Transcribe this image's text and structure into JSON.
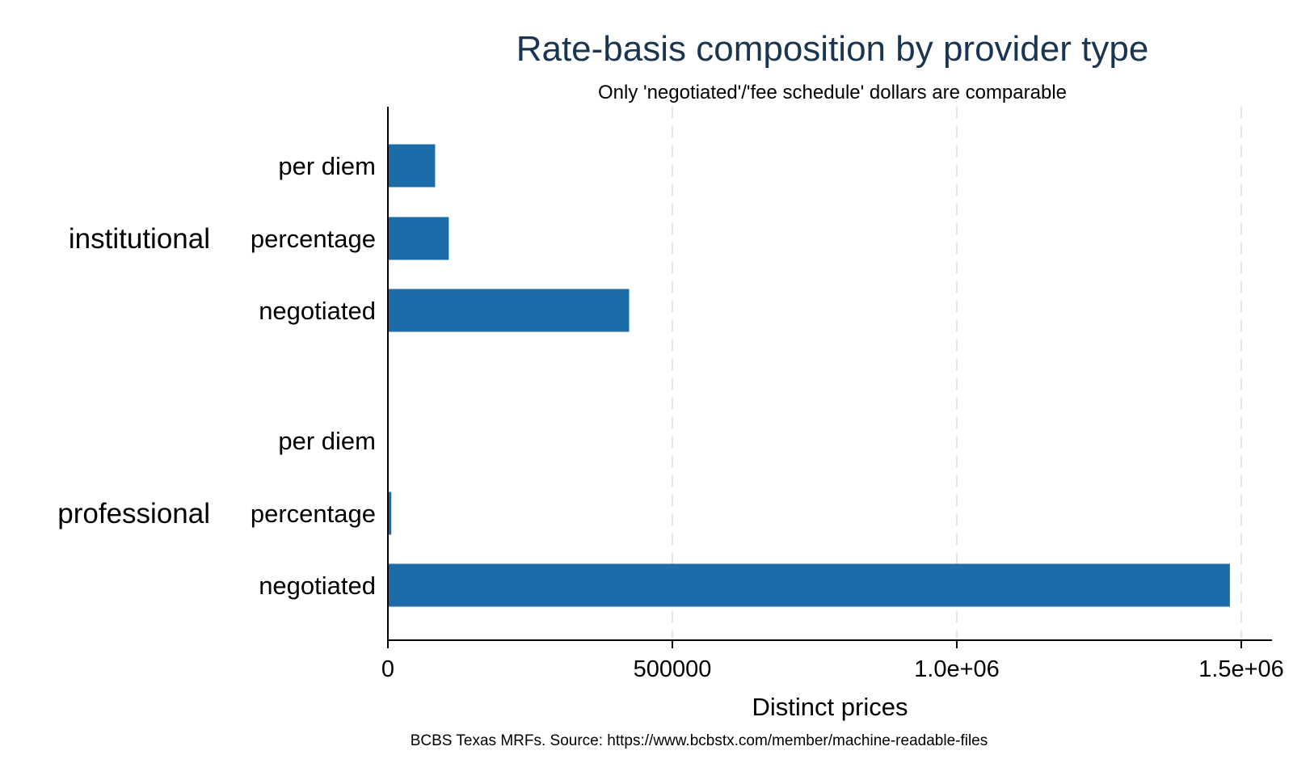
{
  "chart_data": {
    "type": "bar",
    "orientation": "horizontal",
    "title": "Rate-basis composition by provider type",
    "subtitle": "Only 'negotiated'/'fee schedule' dollars are comparable",
    "xlabel": "Distinct prices",
    "note": "BCBS Texas MRFs. Source: https://www.bcbstx.com/member/machine-readable-files",
    "xlim": [
      0,
      1550000
    ],
    "xticks": [
      {
        "value": 0,
        "label": "0"
      },
      {
        "value": 500000,
        "label": "500000"
      },
      {
        "value": 1000000,
        "label": "1.0e+06"
      },
      {
        "value": 1500000,
        "label": "1.5e+06"
      }
    ],
    "grid": "vertical dashed",
    "bar_color": "#1c6ca9",
    "title_color": "#1a3550",
    "groups": [
      {
        "name": "institutional",
        "categories": [
          "per diem",
          "percentage",
          "negotiated"
        ],
        "values": [
          83000,
          107000,
          424000
        ]
      },
      {
        "name": "professional",
        "categories": [
          "per diem",
          "percentage",
          "negotiated"
        ],
        "values": [
          0,
          6000,
          1480000
        ]
      }
    ]
  }
}
